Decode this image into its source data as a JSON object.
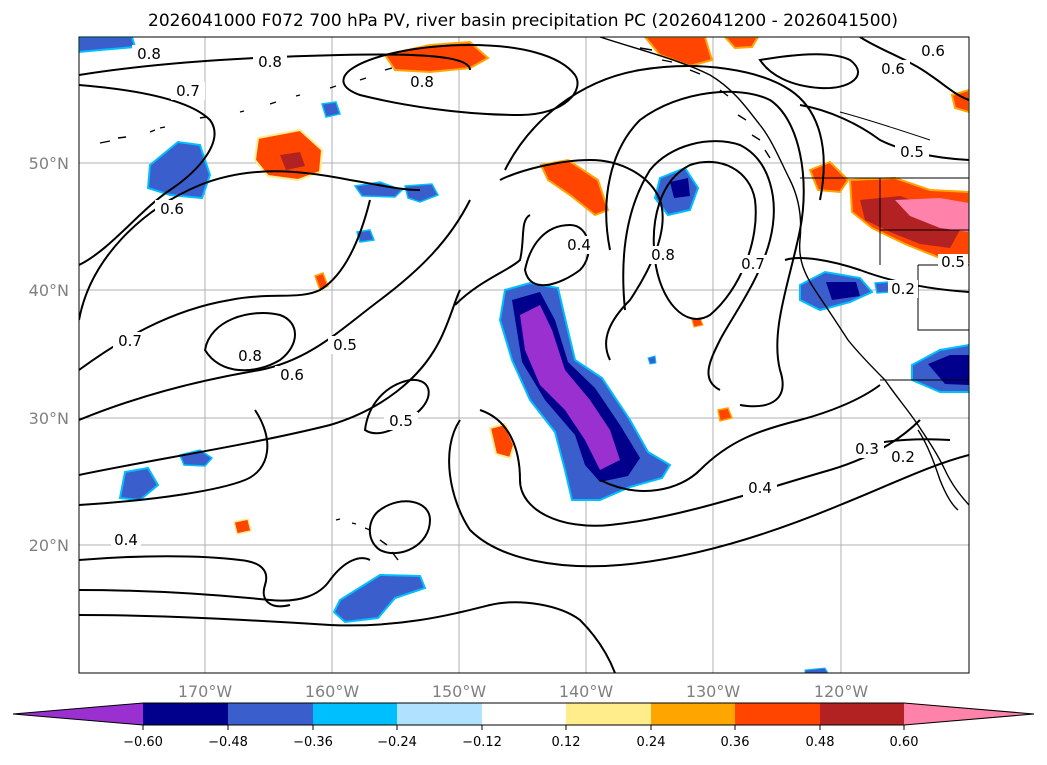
{
  "title": "2026041000 F072 700 hPa PV, river basin precipitation PC (2026041200 - 2026041500)",
  "axes": {
    "lat_labels": [
      "50°N",
      "40°N",
      "30°N",
      "20°N"
    ],
    "lon_labels": [
      "170°W",
      "160°W",
      "150°W",
      "140°W",
      "130°W",
      "120°W"
    ]
  },
  "contour_labels": [
    "0.8",
    "0.8",
    "0.8",
    "0.7",
    "0.6",
    "0.6",
    "0.5",
    "0.7",
    "0.8",
    "0.6",
    "0.5",
    "0.5",
    "0.4",
    "0.8",
    "0.7",
    "0.2",
    "0.4",
    "0.3",
    "0.2",
    "0.4",
    "0.6",
    "0.5"
  ],
  "colorbar": {
    "colors": {
      "lt_-0.60": "#9b30d0",
      "-0.60_-0.48": "#00008c",
      "-0.48_-0.36": "#3a5fcd",
      "-0.36_-0.24": "#00bfff",
      "-0.24_-0.12": "#b0e2ff",
      "-0.12_0.12": "#ffffff",
      "0.12_0.24": "#ffec8b",
      "0.24_0.36": "#ffa500",
      "0.36_0.48": "#ff4500",
      "0.48_0.60": "#b22222",
      "gt_0.60": "#ff82ab"
    },
    "tick_labels": [
      "−0.60",
      "−0.48",
      "−0.36",
      "−0.24",
      "−0.12",
      "0.12",
      "0.24",
      "0.36",
      "0.48",
      "0.60"
    ]
  }
}
